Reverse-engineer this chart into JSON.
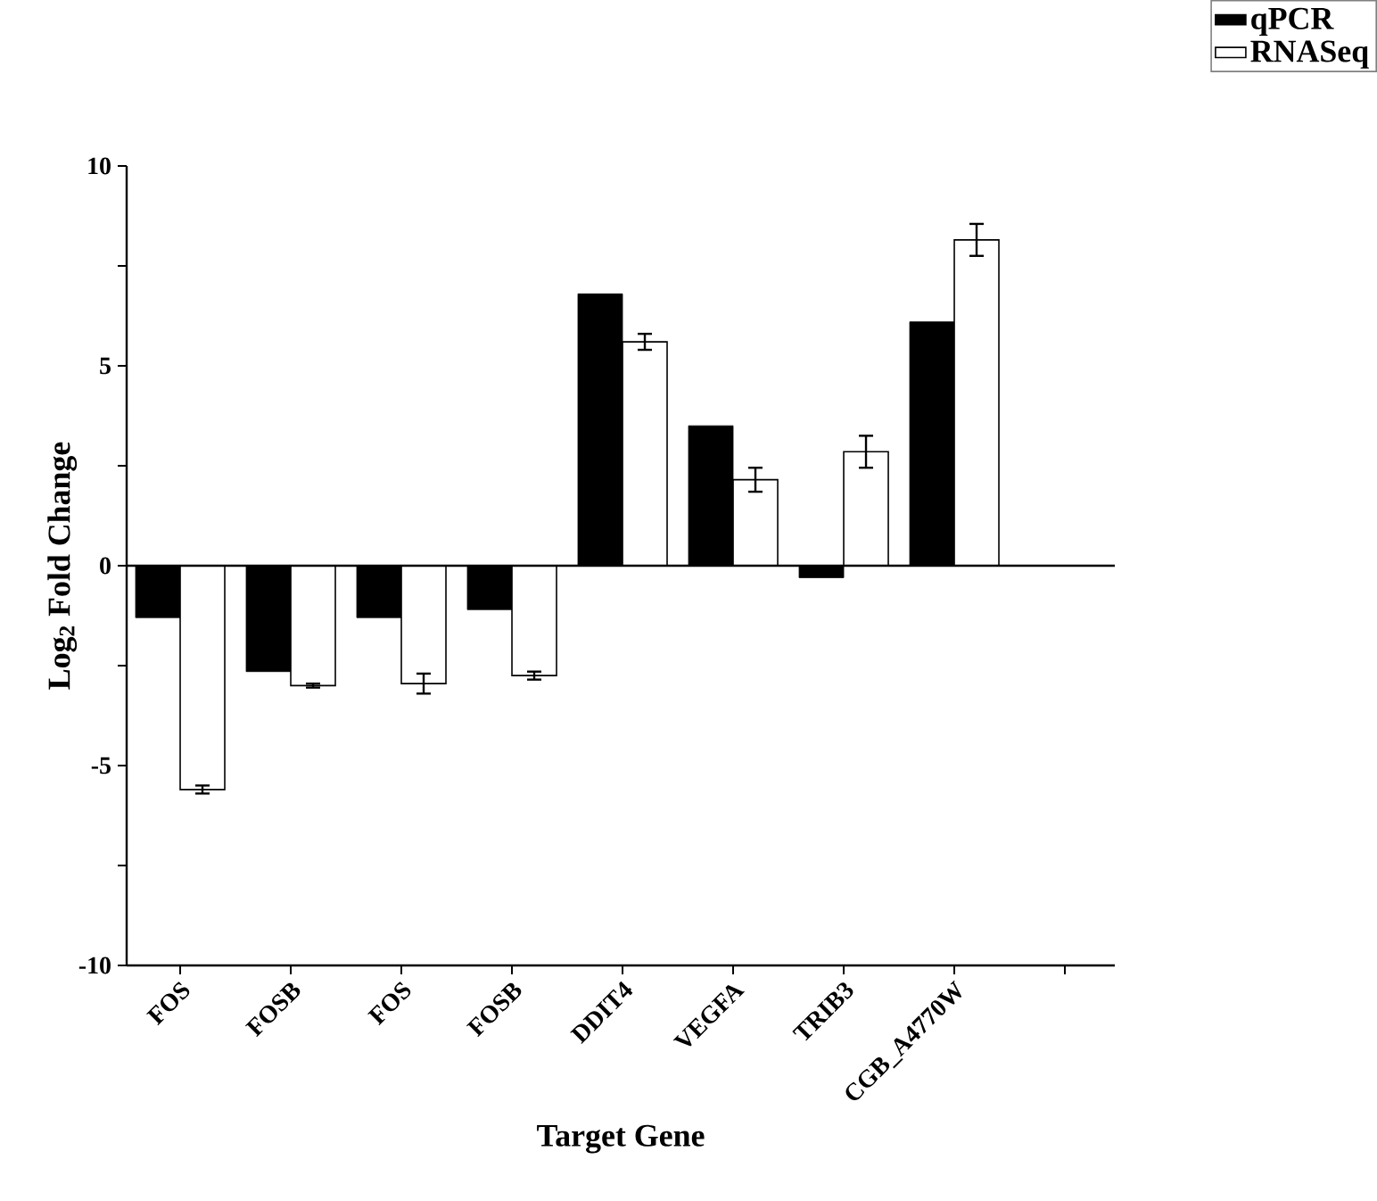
{
  "chart_data": {
    "type": "bar",
    "xlabel": "Target Gene",
    "ylabel": "Log$_{2}$ Fold Change",
    "categories": [
      "FOS",
      "FOSB",
      "FOS",
      "FOSB",
      "DDIT4",
      "VEGFA",
      "TRIB3",
      "CGB_A4770W",
      null
    ],
    "series": [
      {
        "name": "qPCR",
        "color": "#000000",
        "values": [
          -1.3,
          -2.65,
          -1.3,
          -1.1,
          6.8,
          3.5,
          -0.3,
          6.1,
          null
        ]
      },
      {
        "name": "RNASeq",
        "color": "#ffffff",
        "values": [
          -5.6,
          -3.0,
          -2.95,
          -2.75,
          5.6,
          2.15,
          2.85,
          8.15,
          null
        ],
        "errors": [
          0.1,
          0.05,
          0.25,
          0.1,
          0.2,
          0.3,
          0.4,
          0.4,
          null
        ]
      }
    ],
    "ylim": [
      -10,
      10
    ],
    "yticks": [
      -10,
      {
        "value": -7.5,
        "label": null
      },
      -5,
      {
        "value": -2.5,
        "label": null
      },
      0,
      {
        "value": 2.5,
        "label": null
      },
      5,
      {
        "value": 7.5,
        "label": null
      },
      10
    ],
    "ref_lines": [
      {
        "axis": "y",
        "value": 0
      }
    ],
    "legend": "top right"
  }
}
